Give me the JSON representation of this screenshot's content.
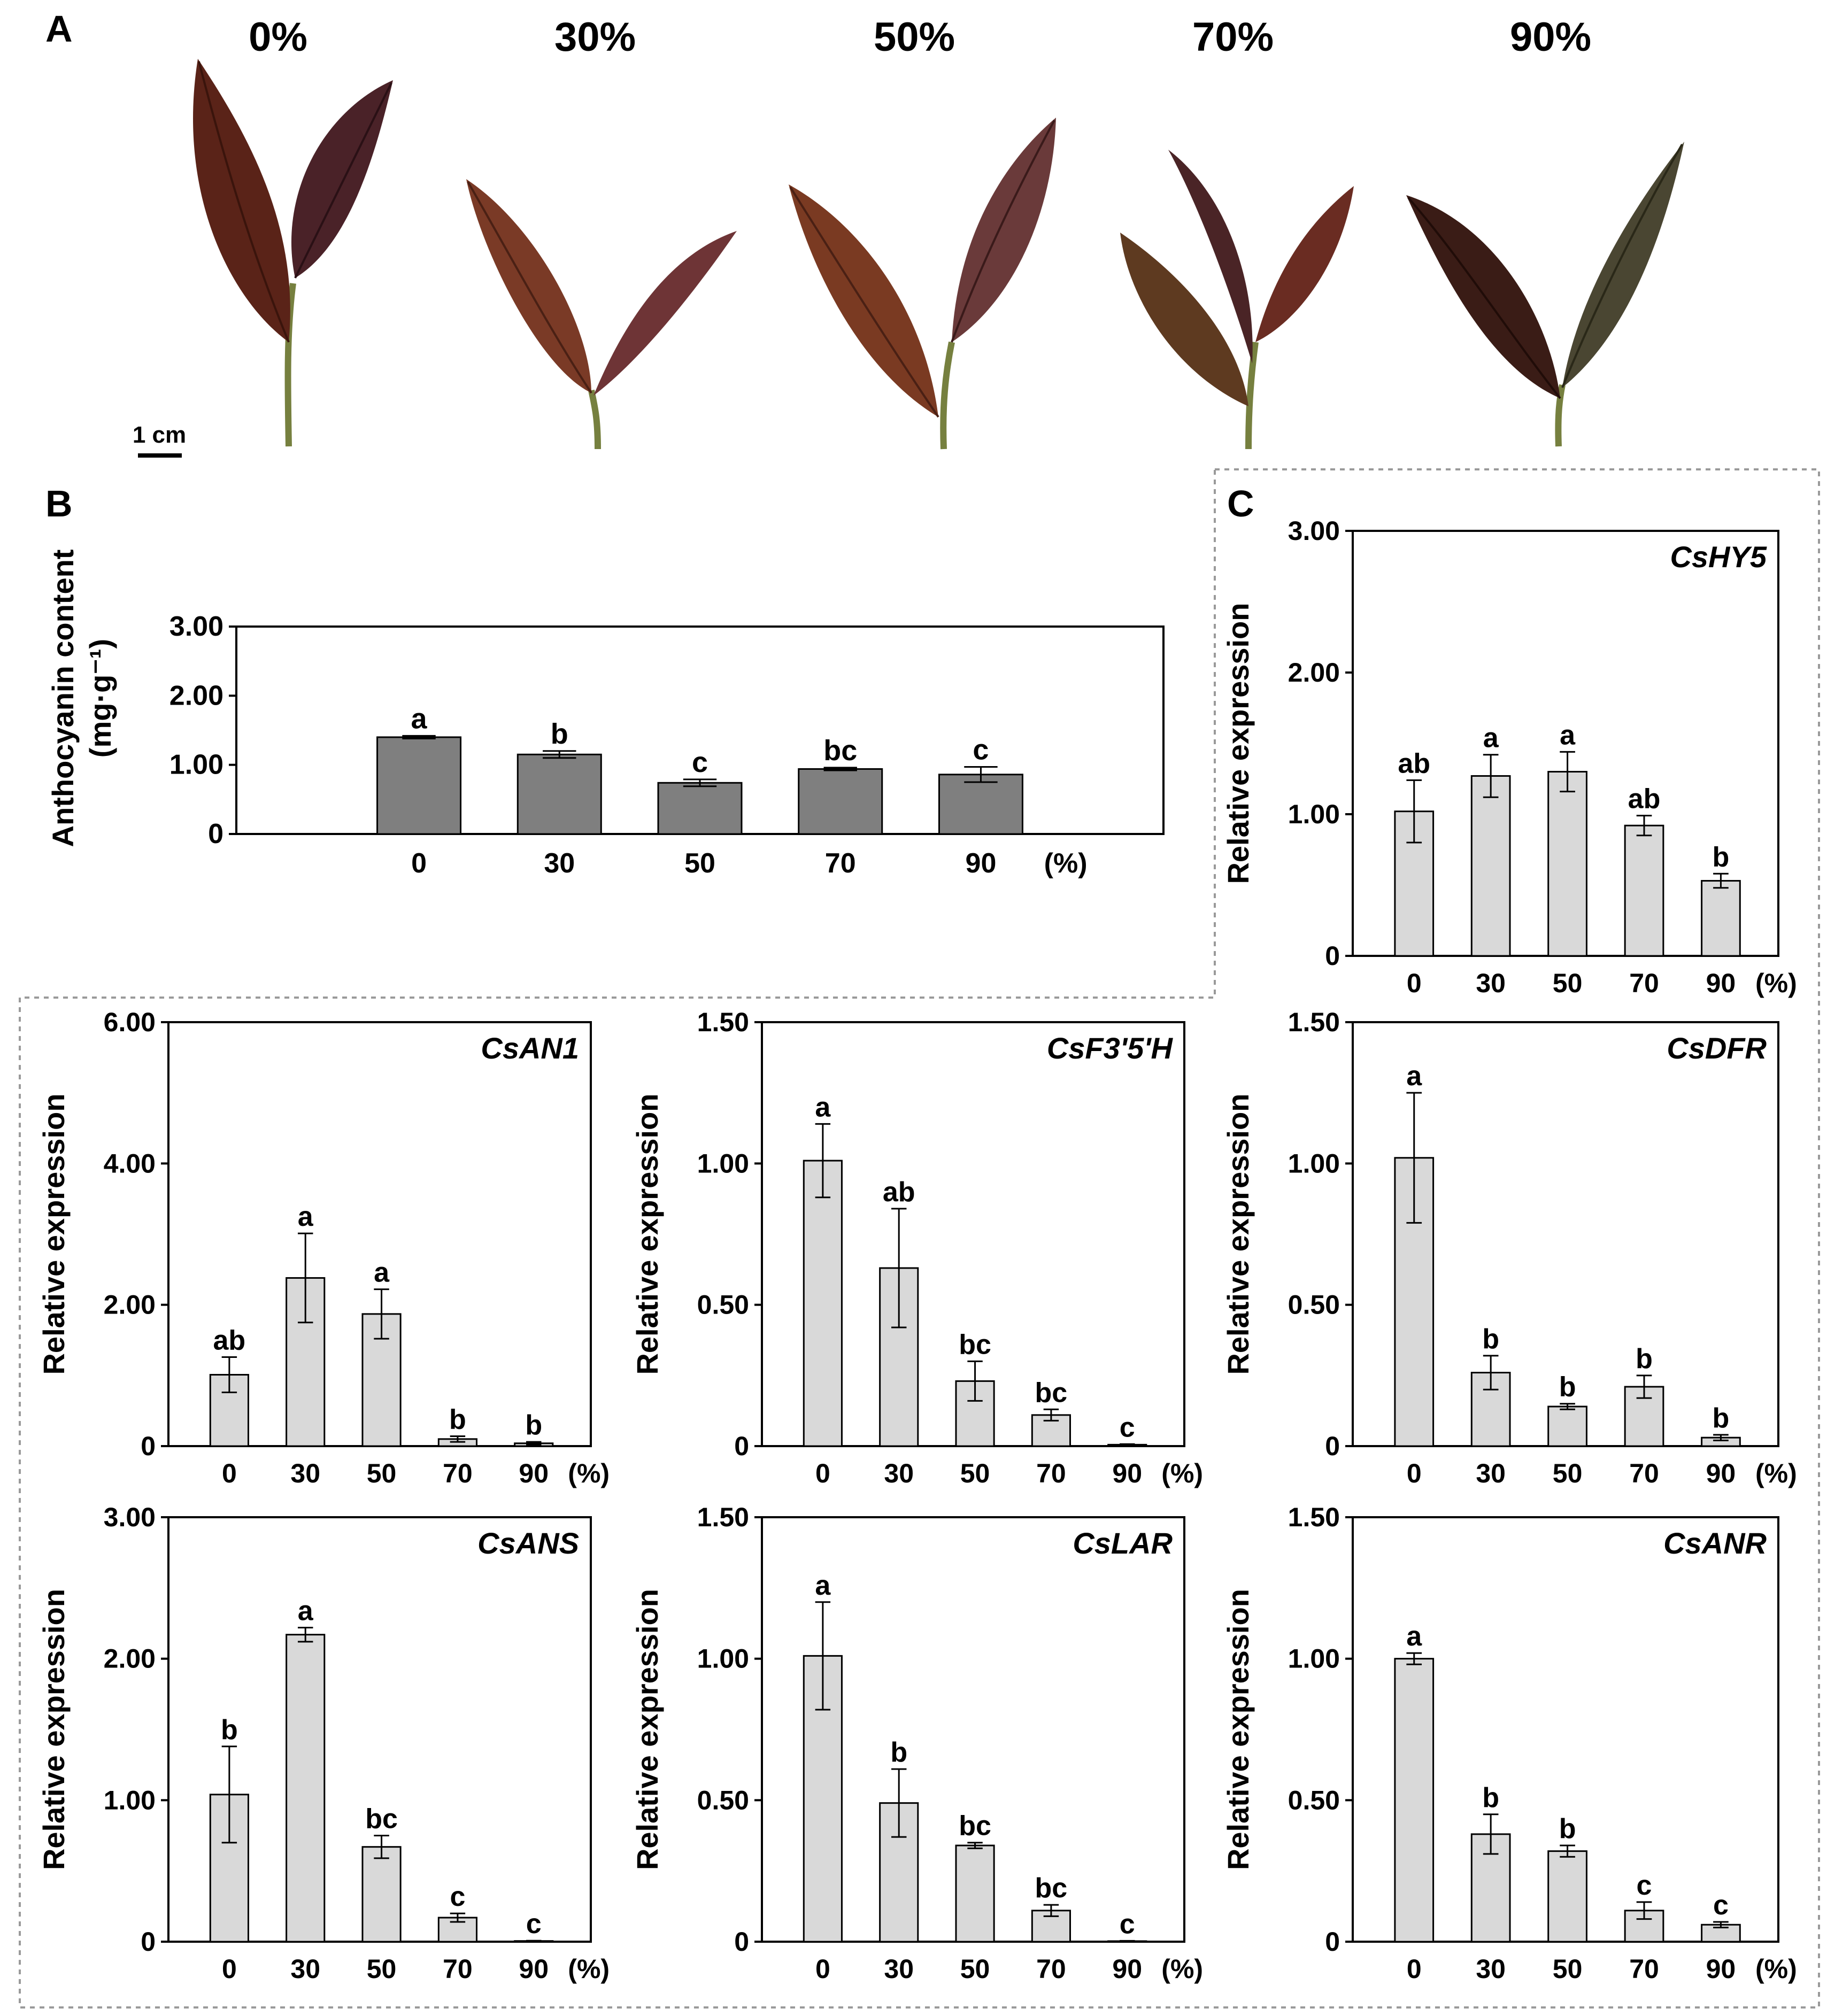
{
  "panel_labels": {
    "a": "A",
    "b": "B",
    "c": "C"
  },
  "panel_a": {
    "shade_labels": [
      "0%",
      "30%",
      "50%",
      "70%",
      "90%"
    ],
    "scale_bar": "1 cm"
  },
  "colors": {
    "anthocyanin_bar": "#7f7f7f",
    "expression_bar": "#d9d9d9",
    "leaf_dark": "#5a2318",
    "leaf_mid": "#7a3a26",
    "stem": "#76803f"
  },
  "chart_data": [
    {
      "id": "anthocyanin",
      "type": "bar",
      "title": "",
      "ylabel_line1": "Anthocyanin content",
      "ylabel_line2": "(mg·g⁻¹)",
      "categories": [
        "0",
        "30",
        "50",
        "70",
        "90"
      ],
      "x_unit": "(%)",
      "values": [
        1.4,
        1.15,
        0.74,
        0.94,
        0.86
      ],
      "errors": [
        0.02,
        0.05,
        0.05,
        0.02,
        0.11
      ],
      "letters": [
        "a",
        "b",
        "c",
        "bc",
        "c"
      ],
      "ylim": [
        0,
        3.0
      ],
      "yticks": [
        0,
        1.0,
        2.0,
        3.0
      ],
      "ytick_labels": [
        "0",
        "1.00",
        "2.00",
        "3.00"
      ]
    },
    {
      "id": "CsHY5",
      "type": "bar",
      "title": "CsHY5",
      "ylabel": "Relative expression",
      "categories": [
        "0",
        "30",
        "50",
        "70",
        "90"
      ],
      "x_unit": "(%)",
      "values": [
        1.02,
        1.27,
        1.3,
        0.92,
        0.53
      ],
      "errors": [
        0.22,
        0.15,
        0.14,
        0.07,
        0.05
      ],
      "letters": [
        "ab",
        "a",
        "a",
        "ab",
        "b"
      ],
      "ylim": [
        0,
        3.0
      ],
      "yticks": [
        0,
        1.0,
        2.0,
        3.0
      ],
      "ytick_labels": [
        "0",
        "1.00",
        "2.00",
        "3.00"
      ]
    },
    {
      "id": "CsAN1",
      "type": "bar",
      "title": "CsAN1",
      "ylabel": "Relative expression",
      "categories": [
        "0",
        "30",
        "50",
        "70",
        "90"
      ],
      "x_unit": "(%)",
      "values": [
        1.01,
        2.38,
        1.87,
        0.1,
        0.04
      ],
      "errors": [
        0.25,
        0.63,
        0.35,
        0.04,
        0.02
      ],
      "letters": [
        "ab",
        "a",
        "a",
        "b",
        "b"
      ],
      "ylim": [
        0,
        6.0
      ],
      "yticks": [
        0,
        2.0,
        4.0,
        6.0
      ],
      "ytick_labels": [
        "0",
        "2.00",
        "4.00",
        "6.00"
      ]
    },
    {
      "id": "CsF3'5'H",
      "type": "bar",
      "title": "CsF3'5'H",
      "ylabel": "Relative expression",
      "categories": [
        "0",
        "30",
        "50",
        "70",
        "90"
      ],
      "x_unit": "(%)",
      "values": [
        1.01,
        0.63,
        0.23,
        0.11,
        0.005
      ],
      "errors": [
        0.13,
        0.21,
        0.07,
        0.02,
        0.002
      ],
      "letters": [
        "a",
        "ab",
        "bc",
        "bc",
        "c"
      ],
      "ylim": [
        0,
        1.5
      ],
      "yticks": [
        0,
        0.5,
        1.0,
        1.5
      ],
      "ytick_labels": [
        "0",
        "0.50",
        "1.00",
        "1.50"
      ]
    },
    {
      "id": "CsDFR",
      "type": "bar",
      "title": "CsDFR",
      "ylabel": "Relative expression",
      "categories": [
        "0",
        "30",
        "50",
        "70",
        "90"
      ],
      "x_unit": "(%)",
      "values": [
        1.02,
        0.26,
        0.14,
        0.21,
        0.03
      ],
      "errors": [
        0.23,
        0.06,
        0.01,
        0.04,
        0.01
      ],
      "letters": [
        "a",
        "b",
        "b",
        "b",
        "b"
      ],
      "ylim": [
        0,
        1.5
      ],
      "yticks": [
        0,
        0.5,
        1.0,
        1.5
      ],
      "ytick_labels": [
        "0",
        "0.50",
        "1.00",
        "1.50"
      ]
    },
    {
      "id": "CsANS",
      "type": "bar",
      "title": "CsANS",
      "ylabel": "Relative expression",
      "categories": [
        "0",
        "30",
        "50",
        "70",
        "90"
      ],
      "x_unit": "(%)",
      "values": [
        1.04,
        2.17,
        0.67,
        0.17,
        0.005
      ],
      "errors": [
        0.34,
        0.05,
        0.08,
        0.03,
        0.002
      ],
      "letters": [
        "b",
        "a",
        "bc",
        "c",
        "c"
      ],
      "ylim": [
        0,
        3.0
      ],
      "yticks": [
        0,
        1.0,
        2.0,
        3.0
      ],
      "ytick_labels": [
        "0",
        "1.00",
        "2.00",
        "3.00"
      ]
    },
    {
      "id": "CsLAR",
      "type": "bar",
      "title": "CsLAR",
      "ylabel": "Relative expression",
      "categories": [
        "0",
        "30",
        "50",
        "70",
        "90"
      ],
      "x_unit": "(%)",
      "values": [
        1.01,
        0.49,
        0.34,
        0.11,
        0.002
      ],
      "errors": [
        0.19,
        0.12,
        0.01,
        0.02,
        0.001
      ],
      "letters": [
        "a",
        "b",
        "bc",
        "bc",
        "c"
      ],
      "ylim": [
        0,
        1.5
      ],
      "yticks": [
        0,
        0.5,
        1.0,
        1.5
      ],
      "ytick_labels": [
        "0",
        "0.50",
        "1.00",
        "1.50"
      ]
    },
    {
      "id": "CsANR",
      "type": "bar",
      "title": "CsANR",
      "ylabel": "Relative expression",
      "categories": [
        "0",
        "30",
        "50",
        "70",
        "90"
      ],
      "x_unit": "(%)",
      "values": [
        1.0,
        0.38,
        0.32,
        0.11,
        0.06
      ],
      "errors": [
        0.02,
        0.07,
        0.02,
        0.03,
        0.01
      ],
      "letters": [
        "a",
        "b",
        "b",
        "c",
        "c"
      ],
      "ylim": [
        0,
        1.5
      ],
      "yticks": [
        0,
        0.5,
        1.0,
        1.5
      ],
      "ytick_labels": [
        "0",
        "0.50",
        "1.00",
        "1.50"
      ]
    }
  ]
}
